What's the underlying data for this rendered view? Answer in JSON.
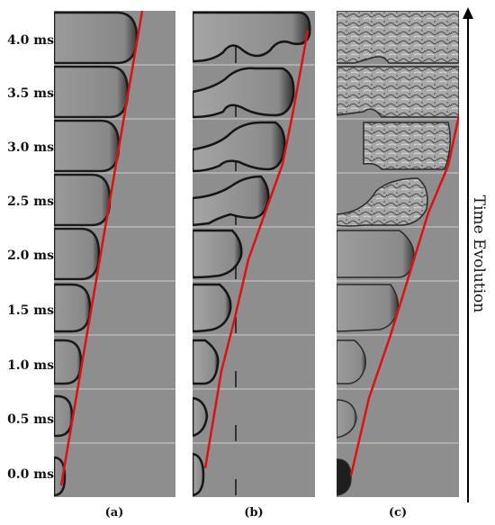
{
  "time_labels": [
    "4.0 ms",
    "3.5 ms",
    "3.0 ms",
    "2.5 ms",
    "2.0 ms",
    "1.5 ms",
    "1.0 ms",
    "0.5 ms",
    "0.0 ms"
  ],
  "panel_labels": [
    "(a)",
    "(b)",
    "(c)"
  ],
  "axis_title": "Time Evolution",
  "colors": {
    "background_gray": "#8e8e8e",
    "front_line": "#e01010",
    "bubble_dark": "#1a1a1a",
    "bubble_light": "#d9d9d9"
  }
}
